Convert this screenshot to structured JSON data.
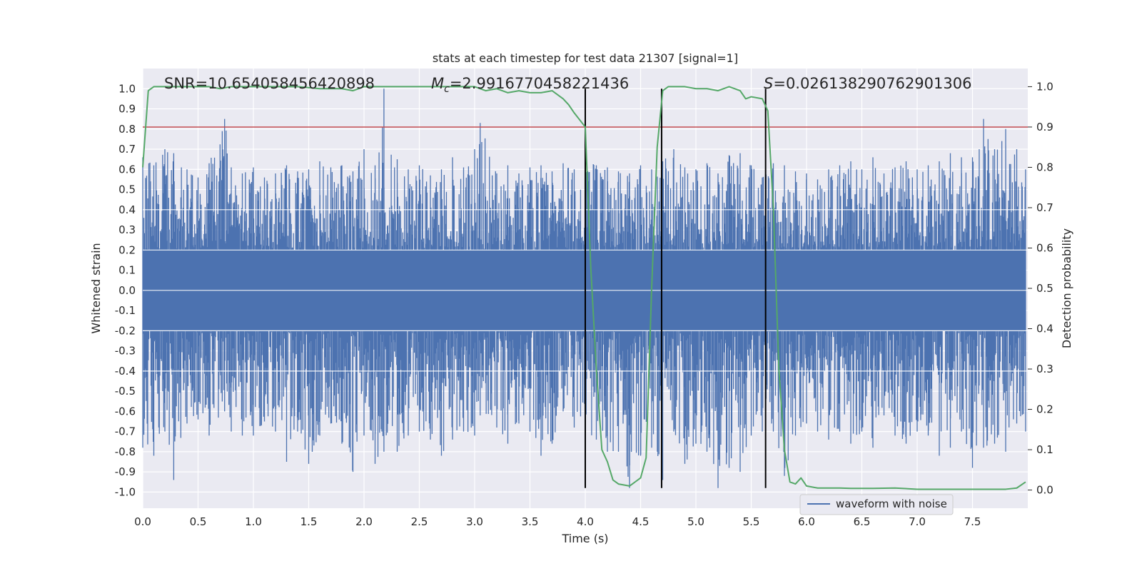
{
  "chart_data": {
    "type": "line",
    "title": "stats at each timestep for test data 21307 [signal=1]",
    "xlabel": "Time (s)",
    "ylabel": "Whitened strain",
    "y2label": "Detection probability",
    "xlim": [
      0.0,
      8.0
    ],
    "ylim": [
      -1.08,
      1.1
    ],
    "y2lim": [
      -0.045,
      1.045
    ],
    "xticks": [
      "0.0",
      "0.5",
      "1.0",
      "1.5",
      "2.0",
      "2.5",
      "3.0",
      "3.5",
      "4.0",
      "4.5",
      "5.0",
      "5.5",
      "6.0",
      "6.5",
      "7.0",
      "7.5"
    ],
    "yticks": [
      "-1.0",
      "-0.9",
      "-0.8",
      "-0.7",
      "-0.6",
      "-0.5",
      "-0.4",
      "-0.3",
      "-0.2",
      "-0.1",
      "0.0",
      "0.1",
      "0.2",
      "0.3",
      "0.4",
      "0.5",
      "0.6",
      "0.7",
      "0.8",
      "0.9",
      "1.0"
    ],
    "y2ticks": [
      "0.0",
      "0.1",
      "0.2",
      "0.3",
      "0.4",
      "0.5",
      "0.6",
      "0.7",
      "0.8",
      "0.9",
      "1.0"
    ],
    "grid": true,
    "legend_position": "lower-right",
    "annotations": {
      "snr": "SNR=10.654058456420898",
      "mc_value": "=2.9916770458221436",
      "s_value": "=0.026138290762901306"
    },
    "threshold": {
      "y2": 0.9,
      "color": "#c44e52"
    },
    "vertical_lines": {
      "x": [
        4.0,
        4.69,
        5.63
      ],
      "y_range": [
        -0.98,
        1.0
      ],
      "color": "#000000"
    },
    "series": [
      {
        "name": "waveform with noise",
        "axis": "left",
        "color": "#4c72b0",
        "envelope": {
          "x": [
            0.0,
            0.1,
            0.2,
            0.28,
            0.4,
            0.5,
            0.6,
            0.74,
            0.8,
            0.9,
            1.0,
            1.1,
            1.2,
            1.3,
            1.4,
            1.5,
            1.6,
            1.7,
            1.8,
            1.9,
            2.0,
            2.1,
            2.18,
            2.3,
            2.4,
            2.5,
            2.6,
            2.7,
            2.8,
            2.9,
            3.0,
            3.05,
            3.2,
            3.3,
            3.4,
            3.5,
            3.6,
            3.7,
            3.8,
            3.9,
            4.0,
            4.1,
            4.2,
            4.3,
            4.4,
            4.5,
            4.6,
            4.7,
            4.8,
            4.9,
            5.0,
            5.1,
            5.2,
            5.3,
            5.4,
            5.5,
            5.6,
            5.7,
            5.8,
            5.9,
            6.0,
            6.1,
            6.2,
            6.3,
            6.4,
            6.5,
            6.6,
            6.7,
            6.8,
            6.9,
            7.0,
            7.1,
            7.2,
            7.3,
            7.4,
            7.5,
            7.6,
            7.7,
            7.8,
            7.9,
            7.98
          ],
          "upper": [
            0.66,
            0.62,
            0.7,
            0.68,
            0.6,
            0.56,
            0.63,
            0.85,
            0.61,
            0.58,
            0.61,
            0.56,
            0.58,
            0.62,
            0.59,
            0.6,
            0.64,
            0.61,
            0.62,
            0.59,
            0.7,
            0.62,
            1.0,
            0.65,
            0.6,
            0.62,
            0.57,
            0.6,
            0.66,
            0.61,
            0.7,
            0.83,
            0.58,
            0.62,
            0.58,
            0.61,
            0.62,
            0.59,
            0.63,
            0.6,
            0.66,
            0.62,
            0.61,
            0.59,
            0.58,
            0.62,
            0.6,
            0.64,
            0.7,
            0.61,
            0.6,
            0.63,
            0.58,
            0.67,
            0.68,
            0.62,
            0.56,
            0.63,
            0.62,
            0.59,
            0.58,
            0.55,
            0.6,
            0.62,
            0.64,
            0.6,
            0.66,
            0.58,
            0.61,
            0.64,
            0.6,
            0.62,
            0.64,
            0.68,
            0.66,
            0.66,
            0.85,
            0.7,
            0.8,
            0.7,
            0.6
          ],
          "lower": [
            -0.78,
            -0.82,
            -0.7,
            -0.94,
            -0.66,
            -0.64,
            -0.72,
            -0.6,
            -0.7,
            -0.72,
            -0.72,
            -0.65,
            -0.7,
            -0.85,
            -0.7,
            -0.86,
            -0.72,
            -0.66,
            -0.76,
            -0.9,
            -0.72,
            -0.86,
            -0.8,
            -0.8,
            -0.72,
            -0.7,
            -0.74,
            -0.82,
            -0.74,
            -0.7,
            -0.72,
            -0.62,
            -0.68,
            -0.76,
            -0.66,
            -0.7,
            -0.82,
            -0.76,
            -0.6,
            -0.68,
            -0.72,
            -0.74,
            -0.8,
            -0.8,
            -0.98,
            -0.82,
            -0.78,
            -0.94,
            -0.7,
            -0.86,
            -0.76,
            -0.8,
            -0.98,
            -0.88,
            -0.9,
            -0.72,
            -0.7,
            -0.7,
            -0.92,
            -0.72,
            -0.66,
            -0.7,
            -0.74,
            -0.7,
            -0.76,
            -0.7,
            -0.78,
            -0.62,
            -0.72,
            -0.76,
            -0.7,
            -0.72,
            -0.82,
            -0.78,
            -0.7,
            -0.88,
            -0.78,
            -0.76,
            -0.8,
            -0.66,
            -0.7
          ]
        }
      },
      {
        "name": "",
        "axis": "right",
        "color": "#55a868",
        "x": [
          0.0,
          0.05,
          0.1,
          0.2,
          0.3,
          0.4,
          0.5,
          0.6,
          0.7,
          0.8,
          0.9,
          1.0,
          1.2,
          1.4,
          1.6,
          1.8,
          1.9,
          2.0,
          2.2,
          2.4,
          2.6,
          2.8,
          3.0,
          3.1,
          3.2,
          3.3,
          3.4,
          3.5,
          3.6,
          3.7,
          3.8,
          3.85,
          3.9,
          4.0,
          4.05,
          4.1,
          4.15,
          4.2,
          4.25,
          4.3,
          4.4,
          4.5,
          4.55,
          4.6,
          4.65,
          4.7,
          4.75,
          4.8,
          4.9,
          5.0,
          5.1,
          5.2,
          5.3,
          5.4,
          5.45,
          5.5,
          5.6,
          5.65,
          5.7,
          5.75,
          5.8,
          5.85,
          5.9,
          5.95,
          6.0,
          6.1,
          6.2,
          6.3,
          6.4,
          6.6,
          6.8,
          7.0,
          7.2,
          7.4,
          7.6,
          7.8,
          7.9,
          7.98
        ],
        "y": [
          0.8,
          0.99,
          1.0,
          1.0,
          1.0,
          1.0,
          1.0,
          1.0,
          0.995,
          1.0,
          1.0,
          1.0,
          1.0,
          1.0,
          0.995,
          0.995,
          0.99,
          1.0,
          1.0,
          1.0,
          1.0,
          1.0,
          1.0,
          0.99,
          0.995,
          0.985,
          0.99,
          0.985,
          0.985,
          0.99,
          0.97,
          0.955,
          0.935,
          0.9,
          0.55,
          0.3,
          0.1,
          0.07,
          0.025,
          0.015,
          0.01,
          0.03,
          0.08,
          0.5,
          0.85,
          0.99,
          1.0,
          1.0,
          1.0,
          0.995,
          0.995,
          0.99,
          1.0,
          0.99,
          0.97,
          0.975,
          0.97,
          0.94,
          0.7,
          0.3,
          0.1,
          0.02,
          0.015,
          0.03,
          0.01,
          0.005,
          0.005,
          0.005,
          0.004,
          0.004,
          0.005,
          0.002,
          0.002,
          0.002,
          0.002,
          0.002,
          0.005,
          0.02
        ]
      }
    ]
  }
}
